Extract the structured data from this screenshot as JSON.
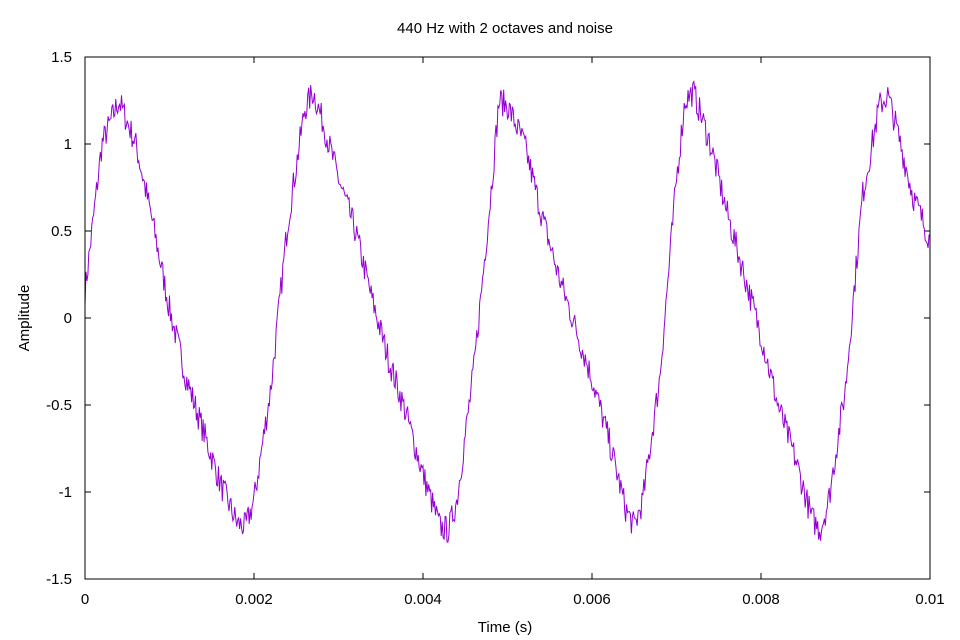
{
  "chart_data": {
    "type": "line",
    "title": "440 Hz with 2 octaves and noise",
    "xlabel": "Time (s)",
    "ylabel": "Amplitude",
    "xlim": [
      0,
      0.01
    ],
    "ylim": [
      -1.5,
      1.5
    ],
    "grid": false,
    "x_ticks": [
      0,
      0.002,
      0.004,
      0.006,
      0.008,
      0.01
    ],
    "x_tick_labels": [
      "0",
      "0.002",
      "0.004",
      "0.006",
      "0.008",
      "0.01"
    ],
    "y_ticks": [
      -1.5,
      -1,
      -0.5,
      0,
      0.5,
      1,
      1.5
    ],
    "y_tick_labels": [
      "-1.5",
      "-1",
      "-0.5",
      "0",
      "0.5",
      "1",
      "1.5"
    ],
    "series": [
      {
        "color": "#9400d3",
        "x": [
          0,
          0.0002,
          0.0004,
          0.0006,
          0.0008,
          0.001,
          0.0012,
          0.0014,
          0.0016,
          0.0018,
          0.0019,
          0.002,
          0.0022,
          0.0024,
          0.0026,
          0.0027,
          0.0028,
          0.003,
          0.0032,
          0.0034,
          0.0036,
          0.0038,
          0.004,
          0.0042,
          0.0043,
          0.0044,
          0.0046,
          0.0048,
          0.0049,
          0.005,
          0.0052,
          0.0054,
          0.0056,
          0.0058,
          0.006,
          0.0062,
          0.0064,
          0.0065,
          0.0066,
          0.0068,
          0.007,
          0.0071,
          0.0072,
          0.0074,
          0.0076,
          0.0078,
          0.008,
          0.0082,
          0.0084,
          0.0086,
          0.0087,
          0.0088,
          0.009,
          0.0092,
          0.0094,
          0.0095,
          0.0096,
          0.0098,
          0.01
        ],
        "y": [
          0.15,
          1.0,
          1.25,
          1.0,
          0.55,
          0.05,
          -0.35,
          -0.65,
          -0.95,
          -1.18,
          -1.2,
          -1.05,
          -0.4,
          0.55,
          1.2,
          1.3,
          1.15,
          0.8,
          0.5,
          0.1,
          -0.25,
          -0.55,
          -0.9,
          -1.2,
          -1.22,
          -1.05,
          -0.3,
          0.7,
          1.25,
          1.22,
          1.0,
          0.6,
          0.25,
          -0.05,
          -0.35,
          -0.7,
          -1.1,
          -1.2,
          -1.05,
          -0.35,
          0.8,
          1.25,
          1.3,
          1.0,
          0.6,
          0.25,
          -0.1,
          -0.5,
          -0.8,
          -1.15,
          -1.22,
          -1.05,
          -0.4,
          0.7,
          1.22,
          1.28,
          1.1,
          0.7,
          0.45
        ]
      }
    ]
  }
}
